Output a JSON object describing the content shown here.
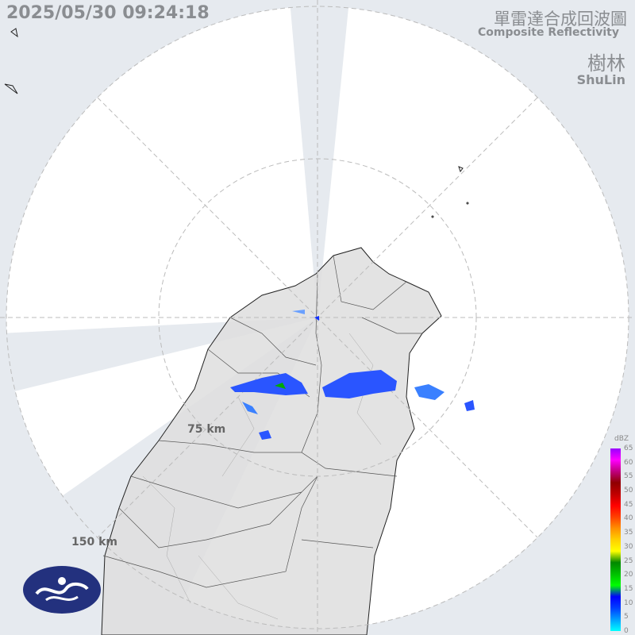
{
  "timestamp": "2025/05/30 09:24:18",
  "title_zh": "單雷達合成回波圖",
  "title_en": "Composite Reflectivity",
  "site_zh": "樹林",
  "site_en": "ShuLin",
  "range_rings": [
    "75 km",
    "150 km"
  ],
  "legend": {
    "unit": "dBZ",
    "ticks": [
      "65",
      "60",
      "55",
      "50",
      "45",
      "40",
      "35",
      "30",
      "25",
      "20",
      "15",
      "10",
      "5",
      "0"
    ],
    "colors": [
      "#00ffff",
      "#00a0ff",
      "#0040ff",
      "#0000ff",
      "#00ff00",
      "#00c000",
      "#008800",
      "#ffff00",
      "#ffd000",
      "#ff9000",
      "#ff4000",
      "#ff0000",
      "#c00000",
      "#900000",
      "#c00080",
      "#ff00ff",
      "#9900ff"
    ]
  },
  "colors": {
    "background": "#e6eaef",
    "coverage": "#ffffff",
    "land": "#e2e2e2",
    "echo": "#2a55ff"
  },
  "logo": "cwa-logo"
}
